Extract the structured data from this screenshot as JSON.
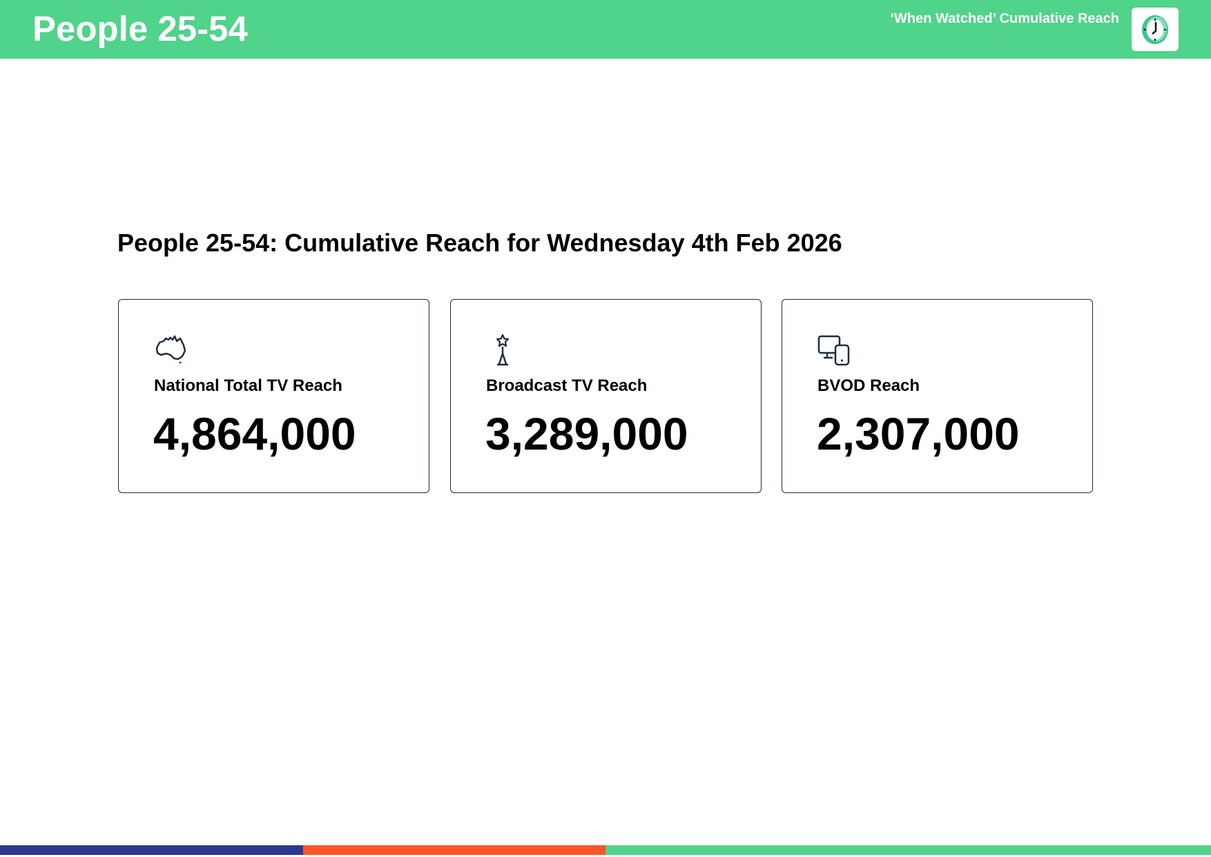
{
  "header": {
    "title": "People 25-54",
    "subtitle": "‘When Watched’ Cumulative Reach",
    "logo_icon": "clock-icon",
    "background_color": "#50d38a"
  },
  "main": {
    "heading": "People 25-54: Cumulative Reach for Wednesday 4th Feb 2026",
    "cards": [
      {
        "icon": "australia-map-icon",
        "label": "National Total TV Reach",
        "value": "4,864,000"
      },
      {
        "icon": "broadcast-tower-icon",
        "label": "Broadcast TV Reach",
        "value": "3,289,000"
      },
      {
        "icon": "devices-icon",
        "label": "BVOD Reach",
        "value": "2,307,000"
      }
    ]
  },
  "footer": {
    "stripe_colors": [
      "#2b3990",
      "#ff5528",
      "#50d38a"
    ]
  }
}
